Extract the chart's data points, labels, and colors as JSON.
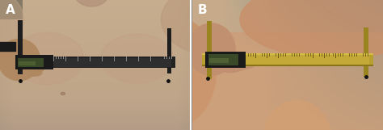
{
  "figsize": [
    4.74,
    1.61
  ],
  "dpi": 100,
  "panels": [
    {
      "label": "A",
      "label_color": "#ffffff",
      "label_fontsize": 11,
      "label_fontweight": "bold"
    },
    {
      "label": "B",
      "label_color": "#ffffff",
      "label_fontsize": 11,
      "label_fontweight": "bold"
    }
  ],
  "left": {
    "bg_skin": [
      0.76,
      0.68,
      0.58
    ],
    "bg_upper_skin": [
      0.72,
      0.64,
      0.55
    ],
    "hand_color": [
      0.7,
      0.58,
      0.45
    ],
    "bg_room_color": [
      0.55,
      0.5,
      0.42
    ],
    "caliper_body": [
      0.15,
      0.15,
      0.15
    ],
    "caliper_display_bg": [
      0.12,
      0.12,
      0.12
    ],
    "caliper_display_screen": [
      0.3,
      0.35,
      0.2
    ],
    "caliper_ruler_color": [
      0.25,
      0.25,
      0.25
    ],
    "caliper_tick_color": [
      0.6,
      0.6,
      0.6
    ],
    "caliper_jaw_color": [
      0.18,
      0.18,
      0.18
    ],
    "marker_color": [
      0.1,
      0.1,
      0.1
    ]
  },
  "right": {
    "bg_teal": [
      0.35,
      0.55,
      0.6
    ],
    "bg_skin": [
      0.8,
      0.68,
      0.55
    ],
    "shoulder_skin": [
      0.82,
      0.7,
      0.56
    ],
    "hand_color": [
      0.72,
      0.58,
      0.44
    ],
    "caliper_gold": [
      0.7,
      0.62,
      0.2
    ],
    "caliper_gold_dark": [
      0.5,
      0.44,
      0.12
    ],
    "caliper_gold_light": [
      0.82,
      0.75,
      0.3
    ],
    "caliper_display_bg": [
      0.12,
      0.12,
      0.12
    ],
    "caliper_display_screen": [
      0.35,
      0.4,
      0.2
    ],
    "caliper_jaw_color": [
      0.55,
      0.48,
      0.15
    ],
    "marker_color": [
      0.1,
      0.1,
      0.1
    ]
  }
}
